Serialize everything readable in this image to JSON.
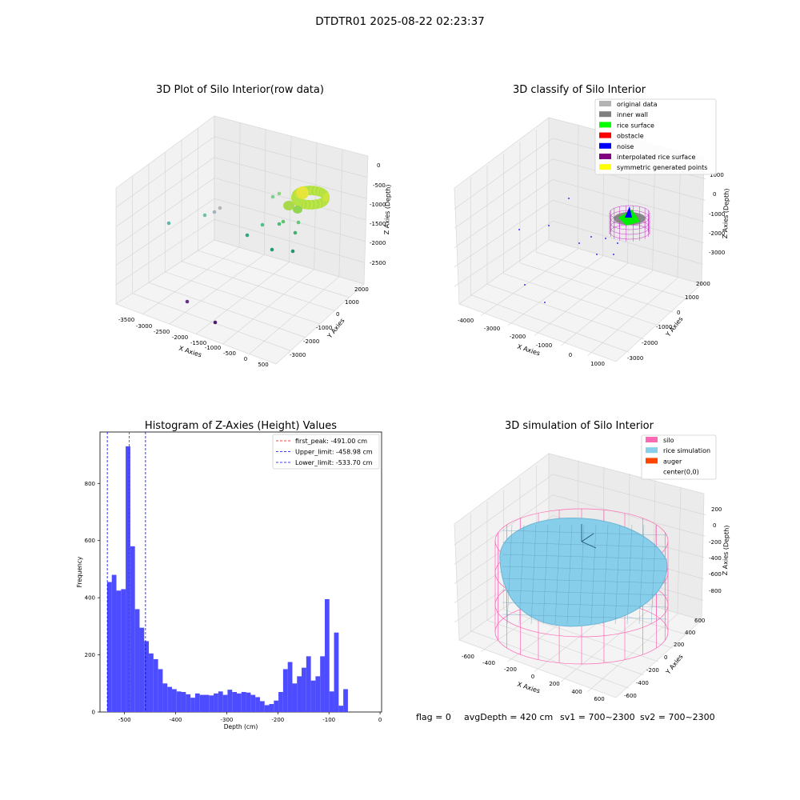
{
  "figure": {
    "suptitle": "DTDTR01 2025-08-22 02:23:37"
  },
  "status": {
    "flag": "flag = 0",
    "avg": "avgDepth = 420 cm",
    "sv1": "sv1 = 700~2300",
    "sv2": "sv2 = 700~2300"
  },
  "colors": {
    "hist_bar": "#4d4dff",
    "first_peak": "#ff0000",
    "limits": "#0000ff",
    "silo": "#ff69b4",
    "rice_sim": "#87ceeb",
    "auger": "#ff4500"
  },
  "chart_data": [
    {
      "type": "scatter",
      "title": "3D Plot of Silo Interior(row data)",
      "xlabel": "X Axies",
      "ylabel": "Y Axies",
      "zlabel": "Z Axies (Depth)",
      "x_ticks": [
        "-3500",
        "-3000",
        "-2500",
        "-2000",
        "-1500",
        "-1000",
        "-500",
        "0",
        "500"
      ],
      "y_ticks": [
        "-3000",
        "-2000",
        "-1000",
        "0",
        "1000",
        "2000"
      ],
      "z_ticks": [
        "0",
        "-500",
        "-1000",
        "-1500",
        "-2000",
        "-2500"
      ]
    },
    {
      "type": "scatter",
      "title": "3D classify of Silo Interior",
      "xlabel": "X Axies",
      "ylabel": "Y Axies",
      "zlabel": "Z Axies (Depth)",
      "x_ticks": [
        "-4000",
        "-3000",
        "-2000",
        "-1000",
        "0",
        "1000"
      ],
      "y_ticks": [
        "-3000",
        "-2000",
        "-1000",
        "0",
        "1000",
        "2000"
      ],
      "z_ticks": [
        "1000",
        "0",
        "-1000",
        "-2000",
        "-3000"
      ],
      "legend": [
        {
          "label": "original data",
          "color": "#b3b3b3"
        },
        {
          "label": "inner wall",
          "color": "#808080"
        },
        {
          "label": "rice surface",
          "color": "#00ff00"
        },
        {
          "label": "obstacle",
          "color": "#ff0000"
        },
        {
          "label": "noise",
          "color": "#0000ff"
        },
        {
          "label": "interpolated rice surface",
          "color": "#800080"
        },
        {
          "label": "symmetric generated points",
          "color": "#ffff00"
        }
      ]
    },
    {
      "type": "bar",
      "title": "Histogram of Z-Axies (Height) Values",
      "xlabel": "Depth (cm)",
      "ylabel": "Frequency",
      "xlim": [
        -548,
        3
      ],
      "ylim": [
        0,
        980
      ],
      "x_ticks": [
        -500,
        -400,
        -300,
        -200,
        -100,
        0
      ],
      "y_ticks": [
        0,
        200,
        400,
        600,
        800
      ],
      "bin_start": -534,
      "bin_width": 9.06,
      "values": [
        455,
        480,
        425,
        430,
        930,
        580,
        360,
        295,
        248,
        205,
        185,
        150,
        100,
        88,
        80,
        72,
        70,
        62,
        50,
        65,
        60,
        60,
        58,
        65,
        72,
        60,
        78,
        70,
        65,
        70,
        68,
        60,
        52,
        38,
        24,
        28,
        40,
        70,
        150,
        175,
        100,
        125,
        155,
        195,
        110,
        125,
        195,
        395,
        72,
        278,
        22,
        80
      ],
      "first_peak": -491.0,
      "upper_limit": -458.98,
      "lower_limit": -533.7,
      "legend": [
        {
          "label": "first_peak: -491.00 cm",
          "color": "#ff0000"
        },
        {
          "label": "Upper_limit: -458.98 cm",
          "color": "#0000ff"
        },
        {
          "label": "Lower_limit: -533.70 cm",
          "color": "#0000ff"
        }
      ]
    },
    {
      "type": "area",
      "title": "3D simulation of Silo Interior",
      "xlabel": "X Axies",
      "ylabel": "Y Axies",
      "zlabel": "Z Axies (Depth)",
      "x_ticks": [
        "-600",
        "-400",
        "-200",
        "0",
        "200",
        "400",
        "600"
      ],
      "y_ticks": [
        "-600",
        "-400",
        "-200",
        "0",
        "200",
        "400",
        "600"
      ],
      "z_ticks": [
        "200",
        "0",
        "-200",
        "-400",
        "-600",
        "-800"
      ],
      "legend": [
        {
          "label": "silo",
          "color": "#ff69b4"
        },
        {
          "label": "rice simulation",
          "color": "#87ceeb"
        },
        {
          "label": "auger",
          "color": "#ff4500"
        },
        {
          "label": "center(0,0)",
          "color": "#ffffff"
        }
      ]
    }
  ]
}
